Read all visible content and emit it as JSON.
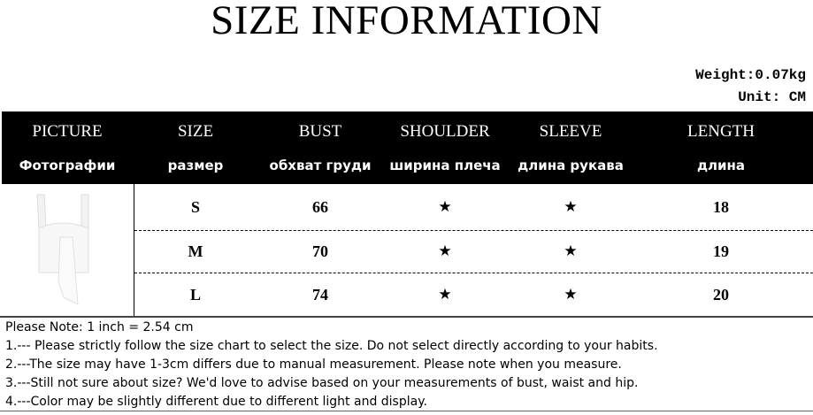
{
  "title": "SIZE INFORMATION",
  "weight": "Weight:0.07kg",
  "unit": "Unit: CM",
  "columns": [
    {
      "en": "PICTURE",
      "ru": "Фотографии"
    },
    {
      "en": "SIZE",
      "ru": "размер"
    },
    {
      "en": "BUST",
      "ru": "обхват груди"
    },
    {
      "en": "SHOULDER",
      "ru": "ширина плеча"
    },
    {
      "en": "SLEEVE",
      "ru": "длина рукава"
    },
    {
      "en": "LENGTH",
      "ru": "длина"
    }
  ],
  "rows": [
    {
      "size": "S",
      "bust": "66",
      "shoulder": "★",
      "sleeve": "★",
      "length": "18"
    },
    {
      "size": "M",
      "bust": "70",
      "shoulder": "★",
      "sleeve": "★",
      "length": "19"
    },
    {
      "size": "L",
      "bust": "74",
      "shoulder": "★",
      "sleeve": "★",
      "length": "20"
    }
  ],
  "notes": [
    "Please Note: 1 inch = 2.54 cm",
    " 1.--- Please strictly follow the size chart to select the size. Do not select directly according to your habits.",
    " 2.---The size may have 1-3cm differs due to manual measurement. Please note when you measure.",
    " 3.---Still not sure about size? We'd love to advise based on your measurements of bust, waist and hip.",
    " 4.---Color may be slightly different due to different light and display."
  ]
}
